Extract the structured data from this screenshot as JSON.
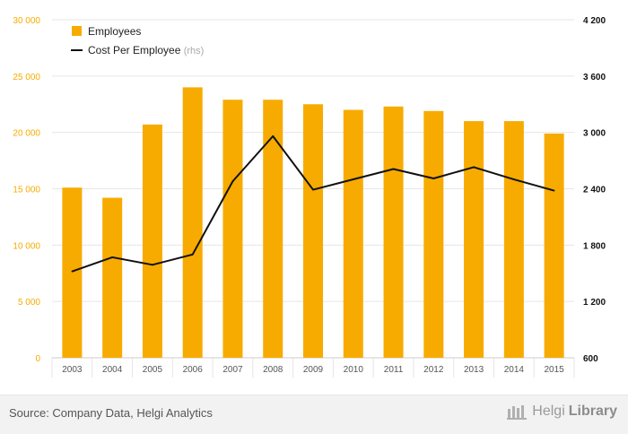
{
  "colors": {
    "bar": "#f7ab00",
    "line": "#111111",
    "grid": "#e6e6e6",
    "left_axis_text": "#f7ab00",
    "right_axis_text": "#111111",
    "x_axis_text": "#555555"
  },
  "chart_data": {
    "type": "bar",
    "categories": [
      "2003",
      "2004",
      "2005",
      "2006",
      "2007",
      "2008",
      "2009",
      "2010",
      "2011",
      "2012",
      "2013",
      "2014",
      "2015"
    ],
    "series": [
      {
        "name": "Employees",
        "type": "bar",
        "axis": "left",
        "values": [
          15100,
          14200,
          20700,
          24000,
          22900,
          22900,
          22500,
          22000,
          22300,
          21900,
          21000,
          21000,
          19900
        ]
      },
      {
        "name": "Cost Per Employee",
        "name_suffix": "(rhs)",
        "type": "line",
        "axis": "right",
        "values": [
          1520,
          1670,
          1590,
          1700,
          2480,
          2960,
          2390,
          2500,
          2610,
          2510,
          2630,
          2500,
          2380
        ]
      }
    ],
    "y_left": {
      "lim": [
        0,
        30000
      ],
      "ticks": [
        0,
        5000,
        10000,
        15000,
        20000,
        25000,
        30000
      ],
      "tick_labels": [
        "0",
        "5 000",
        "10 000",
        "15 000",
        "20 000",
        "25 000",
        "30 000"
      ]
    },
    "y_right": {
      "lim": [
        600,
        4200
      ],
      "ticks": [
        600,
        1200,
        1800,
        2400,
        3000,
        3600,
        4200
      ],
      "tick_labels": [
        "600",
        "1 200",
        "1 800",
        "2 400",
        "3 000",
        "3 600",
        "4 200"
      ]
    },
    "grid": true,
    "legend": "top-left"
  },
  "footer": {
    "source": "Source: Company Data, Helgi Analytics",
    "brand_a": "Helgi",
    "brand_b": "Library"
  }
}
